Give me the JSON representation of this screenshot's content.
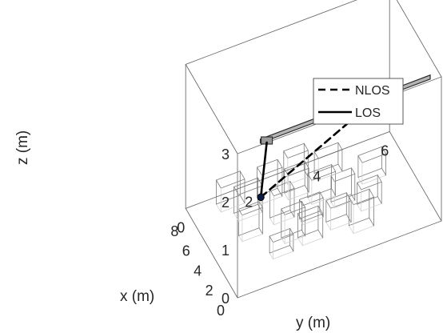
{
  "chart_data": {
    "type": "3d-line",
    "xlabel": "x (m)",
    "ylabel": "y (m)",
    "zlabel": "z (m)",
    "xlim": [
      0,
      9
    ],
    "ylim": [
      0,
      6
    ],
    "zlim": [
      0,
      3
    ],
    "x_ticks": [
      "0",
      "2",
      "4",
      "6",
      "8"
    ],
    "y_ticks": [
      "0",
      "2",
      "4",
      "6"
    ],
    "z_ticks": [
      "0",
      "1",
      "2",
      "3"
    ],
    "grid": false,
    "box": true,
    "legend": {
      "position": "top-right",
      "entries": [
        "NLOS",
        "LOS"
      ]
    },
    "series": [
      {
        "name": "NLOS",
        "style": "dashed",
        "x": [
          6.0,
          1.9
        ],
        "y": [
          1.7,
          4.2
        ],
        "z": [
          0.4,
          2.5
        ]
      },
      {
        "name": "LOS",
        "style": "solid",
        "x": [
          6.0,
          2.0
        ],
        "y": [
          1.7,
          1.2
        ],
        "z": [
          0.4,
          2.5
        ]
      }
    ],
    "receiver": {
      "x": 6.0,
      "y": 1.7,
      "z": 0.4
    },
    "rail": {
      "x": 1.95,
      "y_start": 1.0,
      "y_end": 6.0,
      "z": 2.6
    },
    "obstacles": [
      {
        "x": [
          1.7,
          2.5
        ],
        "y": [
          3.7,
          4.3
        ],
        "z": [
          0,
          0.6
        ]
      },
      {
        "x": [
          2.3,
          3.1
        ],
        "y": [
          2.3,
          2.9
        ],
        "z": [
          0,
          0.5
        ]
      },
      {
        "x": [
          2.7,
          3.5
        ],
        "y": [
          3.2,
          3.8
        ],
        "z": [
          0,
          0.45
        ]
      },
      {
        "x": [
          2.1,
          2.7
        ],
        "y": [
          1.4,
          2.0
        ],
        "z": [
          0,
          0.35
        ]
      },
      {
        "x": [
          3.0,
          3.6
        ],
        "y": [
          1.9,
          2.5
        ],
        "z": [
          0,
          0.6
        ]
      },
      {
        "x": [
          3.3,
          4.0
        ],
        "y": [
          4.2,
          4.8
        ],
        "z": [
          0,
          0.45
        ]
      },
      {
        "x": [
          4.0,
          4.6
        ],
        "y": [
          2.6,
          3.2
        ],
        "z": [
          0,
          0.4
        ]
      },
      {
        "x": [
          4.4,
          5.0
        ],
        "y": [
          3.6,
          4.2
        ],
        "z": [
          0,
          0.55
        ]
      },
      {
        "x": [
          4.5,
          5.1
        ],
        "y": [
          0.9,
          1.5
        ],
        "z": [
          0,
          0.55
        ]
      },
      {
        "x": [
          4.9,
          5.6
        ],
        "y": [
          1.9,
          2.5
        ],
        "z": [
          0,
          0.6
        ]
      },
      {
        "x": [
          5.4,
          6.1
        ],
        "y": [
          3.1,
          3.8
        ],
        "z": [
          0,
          0.5
        ]
      },
      {
        "x": [
          5.5,
          6.2
        ],
        "y": [
          4.6,
          5.3
        ],
        "z": [
          0,
          0.45
        ]
      },
      {
        "x": [
          6.3,
          7.1
        ],
        "y": [
          1.1,
          1.8
        ],
        "z": [
          0,
          0.55
        ]
      },
      {
        "x": [
          6.5,
          7.2
        ],
        "y": [
          2.6,
          3.2
        ],
        "z": [
          0,
          0.5
        ]
      },
      {
        "x": [
          7.0,
          7.8
        ],
        "y": [
          1.9,
          2.5
        ],
        "z": [
          0,
          0.6
        ]
      },
      {
        "x": [
          7.2,
          7.9
        ],
        "y": [
          3.6,
          4.3
        ],
        "z": [
          0,
          0.45
        ]
      },
      {
        "x": [
          7.6,
          8.4
        ],
        "y": [
          0.8,
          1.5
        ],
        "z": [
          0,
          0.5
        ]
      },
      {
        "x": [
          7.8,
          8.5
        ],
        "y": [
          2.8,
          3.4
        ],
        "z": [
          0,
          0.55
        ]
      }
    ]
  }
}
